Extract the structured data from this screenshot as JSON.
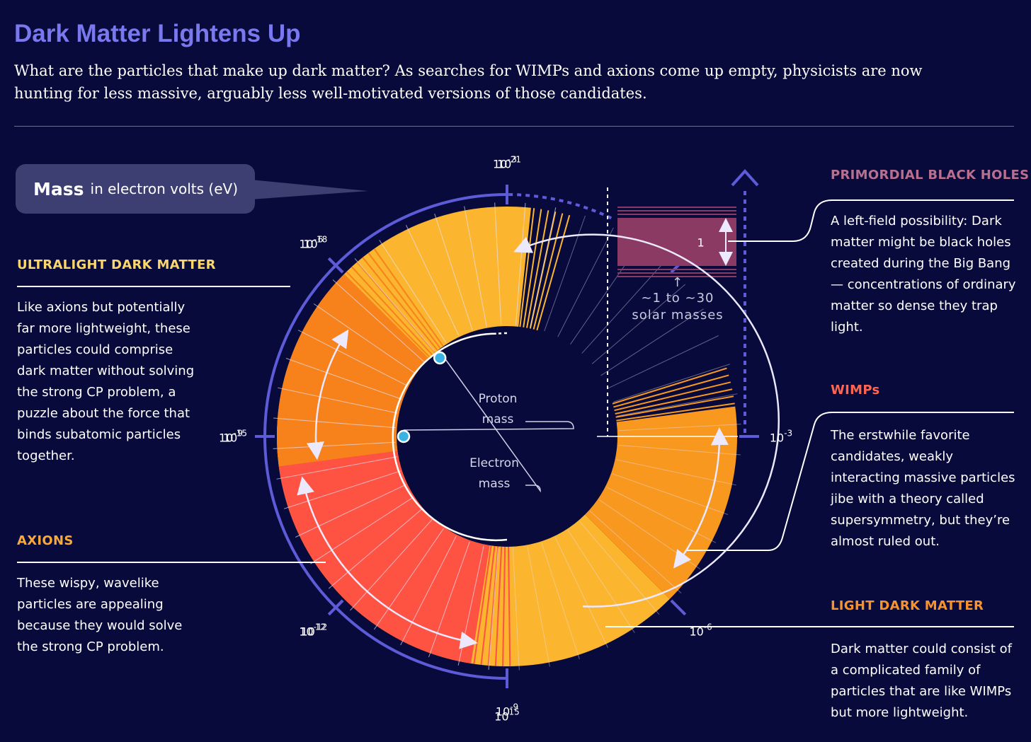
{
  "title": "Dark Matter Lightens Up",
  "subtitle": "What are the particles that make up dark matter? As searches for WIMPs and axions come up empty, physicists are now hunting for less massive, arguably less well-motivated versions of those candidates.",
  "mass_label": {
    "strong": "Mass",
    "rest": "in electron volts (eV)"
  },
  "axis_ticks": [
    {
      "base": "10",
      "exp": "-21"
    },
    {
      "base": "10",
      "exp": "-18"
    },
    {
      "base": "10",
      "exp": "-15"
    },
    {
      "base": "10",
      "exp": "-12"
    },
    {
      "base": "10",
      "exp": "-9"
    },
    {
      "base": "10",
      "exp": "-6"
    },
    {
      "base": "10",
      "exp": "-3"
    },
    {
      "base": "1",
      "exp": ""
    },
    {
      "base": "10",
      "exp": "3"
    },
    {
      "base": "10",
      "exp": "6"
    },
    {
      "base": "10",
      "exp": "9"
    },
    {
      "base": "10",
      "exp": "12"
    },
    {
      "base": "10",
      "exp": "15"
    }
  ],
  "markers": {
    "proton": "Proton mass",
    "electron": "Electron mass",
    "proton_log_ev": 9,
    "electron_log_ev": 5.7
  },
  "categories": {
    "ultralight": {
      "heading": "ULTRALIGHT DARK MATTER",
      "text": "Like axions but potentially far more lightweight, these particles could comprise dark matter without solving the strong CP problem, a puzzle about the force that binds subatomic particles together.",
      "color": "#fbb52f",
      "range_log_ev": [
        -22,
        -6
      ]
    },
    "axions": {
      "heading": "AXIONS",
      "text": "These wispy, wavelike particles are appealing because they would solve the strong CP problem.",
      "color": "#f8981f",
      "range_log_ev": [
        -6,
        -2
      ]
    },
    "light": {
      "heading": "LIGHT DARK MATTER",
      "text": "Dark matter could consist of a complicated family of particles that are like WIMPs but more lightweight.",
      "color": "#f7821b",
      "range_log_ev": [
        5.5,
        9.8
      ]
    },
    "wimps": {
      "heading": "WIMPs",
      "text": "The erstwhile favorite candidates, weakly interacting massive particles jibe with a theory called supersymmetry, but they’re almost ruled out.",
      "color": "#fe5343",
      "range_log_ev": [
        9.5,
        15
      ]
    },
    "pbh": {
      "heading": "PRIMORDIAL BLACK HOLES",
      "text": "A left-field possibility: Dark matter might be black holes created during the Big Bang — concentrations of ordinary matter so dense they trap light.",
      "color": "#8a3a63",
      "note": "~1 to ~30 solar masses"
    }
  },
  "colors": {
    "background": "#070a3a",
    "title": "#7a78ee",
    "axis": "#5e5bd9",
    "pbh_heading": "#b9708f",
    "ultralight_heading": "#fbd66a",
    "axions_heading": "#f8a93a",
    "wimps_heading": "#ff6550",
    "light_heading": "#f8922b",
    "marker": "#39b3e3"
  }
}
